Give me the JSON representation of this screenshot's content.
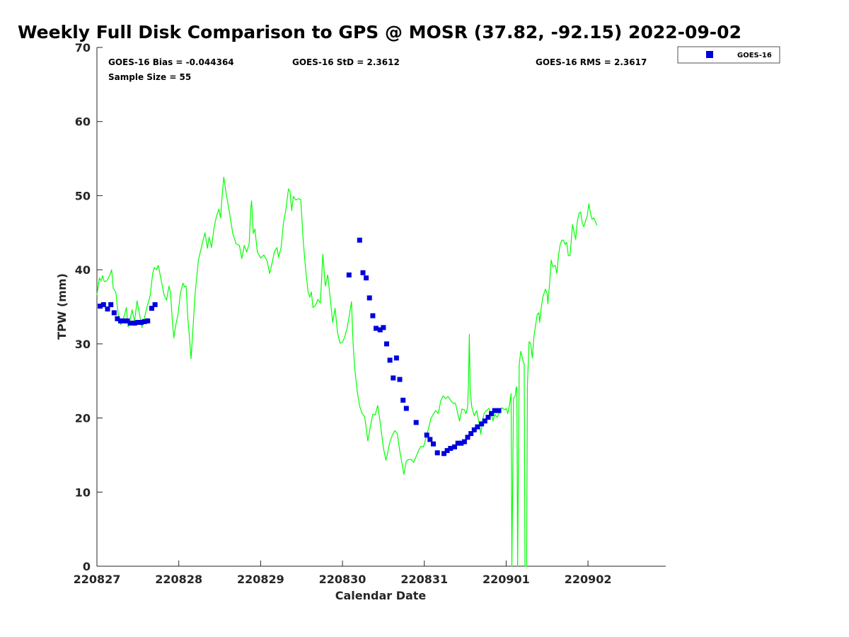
{
  "chart_data": {
    "type": "scatter",
    "title": "Weekly Full Disk Comparison to GPS @ MOSR (37.82, -92.15) 2022-09-02",
    "xlabel": "Calendar Date",
    "ylabel": "TPW (mm)",
    "xlim": [
      0,
      6.95
    ],
    "ylim": [
      0,
      70
    ],
    "xticks": [
      {
        "pos": 0,
        "label": "220827"
      },
      {
        "pos": 1,
        "label": "220828"
      },
      {
        "pos": 2,
        "label": "220829"
      },
      {
        "pos": 3,
        "label": "220830"
      },
      {
        "pos": 4,
        "label": "220831"
      },
      {
        "pos": 5,
        "label": "220901"
      },
      {
        "pos": 6,
        "label": "220902"
      }
    ],
    "yticks": [
      {
        "pos": 0,
        "label": "0"
      },
      {
        "pos": 10,
        "label": "10"
      },
      {
        "pos": 20,
        "label": "20"
      },
      {
        "pos": 30,
        "label": "30"
      },
      {
        "pos": 40,
        "label": "40"
      },
      {
        "pos": 50,
        "label": "50"
      },
      {
        "pos": 60,
        "label": "60"
      },
      {
        "pos": 70,
        "label": "70"
      }
    ],
    "stats": {
      "bias": "GOES-16 Bias = -0.044364",
      "std": "GOES-16 StD = 2.3612",
      "rms": "GOES-16 RMS = 2.3617",
      "sample": "Sample Size = 55"
    },
    "legend": {
      "label": "GOES-16",
      "placement": "top-right-outside"
    },
    "series": [
      {
        "name": "GPS",
        "kind": "line",
        "color": "#00ff00",
        "points": [
          [
            0.0,
            36.6
          ],
          [
            0.03,
            38.9
          ],
          [
            0.05,
            38.5
          ],
          [
            0.07,
            39.2
          ],
          [
            0.09,
            38.4
          ],
          [
            0.12,
            38.5
          ],
          [
            0.15,
            39.1
          ],
          [
            0.18,
            40.0
          ],
          [
            0.2,
            37.5
          ],
          [
            0.23,
            37.0
          ],
          [
            0.26,
            34.0
          ],
          [
            0.29,
            32.6
          ],
          [
            0.32,
            33.2
          ],
          [
            0.36,
            34.9
          ],
          [
            0.38,
            32.3
          ],
          [
            0.4,
            33.0
          ],
          [
            0.43,
            34.6
          ],
          [
            0.46,
            33.0
          ],
          [
            0.49,
            35.8
          ],
          [
            0.52,
            34.0
          ],
          [
            0.55,
            32.2
          ],
          [
            0.58,
            33.5
          ],
          [
            0.61,
            34.9
          ],
          [
            0.65,
            36.5
          ],
          [
            0.68,
            39.4
          ],
          [
            0.7,
            40.3
          ],
          [
            0.73,
            40.0
          ],
          [
            0.75,
            40.6
          ],
          [
            0.78,
            38.9
          ],
          [
            0.82,
            36.6
          ],
          [
            0.85,
            35.9
          ],
          [
            0.88,
            37.8
          ],
          [
            0.9,
            36.9
          ],
          [
            0.92,
            33.4
          ],
          [
            0.94,
            30.8
          ],
          [
            0.96,
            32.4
          ],
          [
            0.99,
            33.9
          ],
          [
            1.02,
            36.8
          ],
          [
            1.05,
            38.2
          ],
          [
            1.07,
            37.7
          ],
          [
            1.09,
            37.8
          ],
          [
            1.11,
            33.5
          ],
          [
            1.13,
            31.0
          ],
          [
            1.15,
            28.0
          ],
          [
            1.17,
            31.4
          ],
          [
            1.2,
            36.8
          ],
          [
            1.24,
            41.3
          ],
          [
            1.28,
            43.2
          ],
          [
            1.32,
            45.0
          ],
          [
            1.35,
            42.9
          ],
          [
            1.37,
            44.4
          ],
          [
            1.4,
            43.0
          ],
          [
            1.43,
            45.6
          ],
          [
            1.46,
            47.2
          ],
          [
            1.49,
            48.2
          ],
          [
            1.51,
            47.0
          ],
          [
            1.53,
            50.0
          ],
          [
            1.55,
            52.5
          ],
          [
            1.58,
            50.2
          ],
          [
            1.62,
            47.7
          ],
          [
            1.66,
            44.9
          ],
          [
            1.7,
            43.5
          ],
          [
            1.74,
            43.3
          ],
          [
            1.77,
            41.5
          ],
          [
            1.8,
            43.3
          ],
          [
            1.83,
            42.4
          ],
          [
            1.86,
            43.5
          ],
          [
            1.88,
            48.3
          ],
          [
            1.89,
            49.3
          ],
          [
            1.91,
            44.9
          ],
          [
            1.93,
            45.5
          ],
          [
            1.96,
            42.4
          ],
          [
            2.0,
            41.6
          ],
          [
            2.04,
            42.0
          ],
          [
            2.08,
            41.2
          ],
          [
            2.11,
            39.5
          ],
          [
            2.14,
            40.9
          ],
          [
            2.17,
            42.5
          ],
          [
            2.2,
            43.0
          ],
          [
            2.22,
            41.7
          ],
          [
            2.25,
            43.0
          ],
          [
            2.28,
            46.4
          ],
          [
            2.31,
            48.2
          ],
          [
            2.34,
            50.9
          ],
          [
            2.36,
            50.5
          ],
          [
            2.38,
            48.0
          ],
          [
            2.4,
            49.9
          ],
          [
            2.43,
            49.4
          ],
          [
            2.46,
            49.6
          ],
          [
            2.49,
            49.5
          ],
          [
            2.52,
            44.0
          ],
          [
            2.55,
            40.0
          ],
          [
            2.58,
            37.0
          ],
          [
            2.6,
            36.3
          ],
          [
            2.62,
            37.0
          ],
          [
            2.64,
            34.9
          ],
          [
            2.67,
            35.2
          ],
          [
            2.7,
            36.0
          ],
          [
            2.73,
            35.5
          ],
          [
            2.76,
            42.1
          ],
          [
            2.79,
            37.8
          ],
          [
            2.82,
            39.3
          ],
          [
            2.85,
            36.2
          ],
          [
            2.88,
            32.9
          ],
          [
            2.91,
            34.8
          ],
          [
            2.94,
            31.5
          ],
          [
            2.97,
            30.1
          ],
          [
            3.0,
            30.2
          ],
          [
            3.03,
            31.0
          ],
          [
            3.06,
            32.3
          ],
          [
            3.09,
            34.3
          ],
          [
            3.11,
            35.7
          ],
          [
            3.13,
            30.0
          ],
          [
            3.15,
            26.7
          ],
          [
            3.18,
            23.6
          ],
          [
            3.21,
            21.6
          ],
          [
            3.24,
            20.6
          ],
          [
            3.27,
            20.2
          ],
          [
            3.29,
            18.7
          ],
          [
            3.31,
            16.9
          ],
          [
            3.34,
            18.8
          ],
          [
            3.37,
            20.5
          ],
          [
            3.4,
            20.4
          ],
          [
            3.43,
            21.7
          ],
          [
            3.46,
            19.5
          ],
          [
            3.5,
            16.0
          ],
          [
            3.53,
            14.3
          ],
          [
            3.55,
            15.2
          ],
          [
            3.58,
            16.8
          ],
          [
            3.61,
            17.7
          ],
          [
            3.64,
            18.3
          ],
          [
            3.67,
            17.9
          ],
          [
            3.7,
            15.6
          ],
          [
            3.73,
            13.7
          ],
          [
            3.75,
            12.4
          ],
          [
            3.78,
            14.2
          ],
          [
            3.81,
            14.4
          ],
          [
            3.84,
            14.4
          ],
          [
            3.87,
            14.0
          ],
          [
            3.9,
            14.8
          ],
          [
            3.93,
            15.6
          ],
          [
            3.96,
            16.2
          ],
          [
            3.99,
            16.1
          ],
          [
            4.02,
            17.3
          ],
          [
            4.05,
            18.5
          ],
          [
            4.08,
            19.9
          ],
          [
            4.11,
            20.5
          ],
          [
            4.14,
            21.0
          ],
          [
            4.17,
            20.6
          ],
          [
            4.2,
            22.3
          ],
          [
            4.23,
            23.0
          ],
          [
            4.26,
            22.6
          ],
          [
            4.29,
            22.9
          ],
          [
            4.32,
            22.4
          ],
          [
            4.35,
            22.0
          ],
          [
            4.38,
            22.0
          ],
          [
            4.41,
            20.5
          ],
          [
            4.43,
            19.6
          ],
          [
            4.46,
            21.2
          ],
          [
            4.49,
            21.1
          ],
          [
            4.51,
            20.6
          ],
          [
            4.53,
            21.5
          ],
          [
            4.54,
            25.0
          ],
          [
            4.55,
            31.3
          ],
          [
            4.56,
            24.0
          ],
          [
            4.58,
            21.5
          ],
          [
            4.61,
            20.3
          ],
          [
            4.64,
            21.0
          ],
          [
            4.67,
            19.3
          ],
          [
            4.69,
            17.8
          ],
          [
            4.71,
            19.6
          ],
          [
            4.73,
            20.6
          ],
          [
            4.76,
            21.0
          ],
          [
            4.79,
            21.3
          ],
          [
            4.82,
            20.5
          ],
          [
            4.84,
            19.6
          ],
          [
            4.86,
            20.5
          ],
          [
            4.89,
            20.1
          ],
          [
            4.92,
            20.8
          ],
          [
            4.95,
            21.4
          ],
          [
            4.98,
            21.1
          ],
          [
            5.0,
            21.3
          ],
          [
            5.02,
            20.6
          ],
          [
            5.04,
            21.7
          ],
          [
            5.06,
            23.3
          ],
          [
            5.07,
            0.0
          ],
          [
            5.09,
            22.7
          ],
          [
            5.11,
            22.9
          ],
          [
            5.12,
            24.0
          ],
          [
            5.13,
            24.2
          ],
          [
            5.14,
            0.0
          ],
          [
            5.16,
            27.3
          ],
          [
            5.18,
            29.0
          ],
          [
            5.19,
            28.5
          ],
          [
            5.21,
            27.6
          ],
          [
            5.22,
            27.3
          ],
          [
            5.23,
            0.0
          ],
          [
            5.24,
            0.0
          ],
          [
            5.25,
            0.0
          ],
          [
            5.26,
            24.5
          ],
          [
            5.28,
            30.3
          ],
          [
            5.3,
            30.0
          ],
          [
            5.32,
            28.1
          ],
          [
            5.34,
            31.0
          ],
          [
            5.36,
            32.6
          ],
          [
            5.38,
            34.0
          ],
          [
            5.4,
            34.2
          ],
          [
            5.41,
            32.9
          ],
          [
            5.43,
            35.0
          ],
          [
            5.45,
            36.4
          ],
          [
            5.48,
            37.4
          ],
          [
            5.5,
            36.8
          ],
          [
            5.51,
            35.4
          ],
          [
            5.53,
            38.0
          ],
          [
            5.55,
            41.3
          ],
          [
            5.57,
            40.4
          ],
          [
            5.6,
            40.6
          ],
          [
            5.62,
            39.5
          ],
          [
            5.64,
            42.0
          ],
          [
            5.66,
            43.4
          ],
          [
            5.68,
            44.0
          ],
          [
            5.7,
            44.0
          ],
          [
            5.72,
            43.4
          ],
          [
            5.74,
            43.7
          ],
          [
            5.76,
            41.9
          ],
          [
            5.78,
            41.9
          ],
          [
            5.8,
            44.6
          ],
          [
            5.81,
            46.1
          ],
          [
            5.83,
            45.1
          ],
          [
            5.85,
            44.1
          ],
          [
            5.87,
            46.6
          ],
          [
            5.89,
            47.6
          ],
          [
            5.91,
            47.8
          ],
          [
            5.93,
            46.3
          ],
          [
            5.95,
            45.8
          ],
          [
            5.97,
            46.6
          ],
          [
            5.99,
            47.2
          ],
          [
            6.01,
            48.9
          ],
          [
            6.03,
            47.6
          ],
          [
            6.05,
            46.8
          ],
          [
            6.07,
            47.0
          ],
          [
            6.09,
            46.5
          ],
          [
            6.11,
            46.0
          ]
        ]
      },
      {
        "name": "GOES-16",
        "kind": "scatter",
        "color": "#0000dd",
        "points": [
          [
            0.04,
            35.1
          ],
          [
            0.08,
            35.3
          ],
          [
            0.13,
            34.7
          ],
          [
            0.17,
            35.3
          ],
          [
            0.21,
            34.2
          ],
          [
            0.25,
            33.4
          ],
          [
            0.29,
            33.1
          ],
          [
            0.33,
            33.1
          ],
          [
            0.37,
            33.1
          ],
          [
            0.41,
            32.8
          ],
          [
            0.46,
            32.8
          ],
          [
            0.5,
            32.9
          ],
          [
            0.54,
            32.9
          ],
          [
            0.58,
            33.0
          ],
          [
            0.62,
            33.1
          ],
          [
            0.67,
            34.8
          ],
          [
            0.71,
            35.3
          ],
          [
            3.08,
            39.3
          ],
          [
            3.21,
            44.0
          ],
          [
            3.25,
            39.6
          ],
          [
            3.29,
            38.9
          ],
          [
            3.33,
            36.2
          ],
          [
            3.37,
            33.8
          ],
          [
            3.41,
            32.1
          ],
          [
            3.46,
            31.9
          ],
          [
            3.5,
            32.2
          ],
          [
            3.54,
            30.0
          ],
          [
            3.58,
            27.8
          ],
          [
            3.62,
            25.4
          ],
          [
            3.66,
            28.1
          ],
          [
            3.7,
            25.2
          ],
          [
            3.74,
            22.4
          ],
          [
            3.78,
            21.3
          ],
          [
            3.9,
            19.4
          ],
          [
            4.03,
            17.7
          ],
          [
            4.07,
            17.1
          ],
          [
            4.11,
            16.5
          ],
          [
            4.16,
            15.3
          ],
          [
            4.24,
            15.2
          ],
          [
            4.28,
            15.6
          ],
          [
            4.32,
            15.9
          ],
          [
            4.37,
            16.1
          ],
          [
            4.41,
            16.6
          ],
          [
            4.45,
            16.6
          ],
          [
            4.49,
            16.8
          ],
          [
            4.53,
            17.4
          ],
          [
            4.57,
            17.9
          ],
          [
            4.61,
            18.4
          ],
          [
            4.65,
            18.8
          ],
          [
            4.7,
            19.2
          ],
          [
            4.74,
            19.6
          ],
          [
            4.78,
            20.1
          ],
          [
            4.82,
            20.6
          ],
          [
            4.86,
            21.0
          ],
          [
            4.91,
            21.0
          ]
        ]
      }
    ]
  }
}
